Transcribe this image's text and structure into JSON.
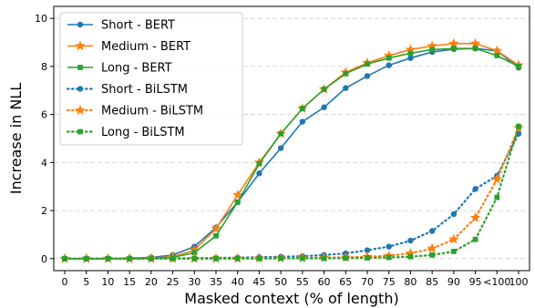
{
  "chart_data": {
    "type": "line",
    "xlabel": "Masked context (% of length)",
    "ylabel": "Increase in NLL",
    "categories": [
      "0",
      "5",
      "10",
      "15",
      "20",
      "25",
      "30",
      "35",
      "40",
      "45",
      "50",
      "55",
      "60",
      "65",
      "70",
      "75",
      "80",
      "85",
      "90",
      "95",
      "<100",
      "100"
    ],
    "ylim": [
      -0.5,
      10.5
    ],
    "yticks": [
      0,
      2,
      4,
      6,
      8,
      10
    ],
    "grid": "horizontal dashed",
    "legend_position": "top-left",
    "series": [
      {
        "name": "Short - BERT",
        "color": "#1f77b4",
        "marker": "circle",
        "linestyle": "solid",
        "values": [
          0.0,
          0.0,
          0.0,
          0.02,
          0.05,
          0.15,
          0.5,
          1.3,
          2.35,
          3.55,
          4.6,
          5.7,
          6.3,
          7.1,
          7.6,
          8.05,
          8.35,
          8.6,
          8.72,
          8.75,
          8.65,
          7.95
        ]
      },
      {
        "name": "Medium - BERT",
        "color": "#ff7f0e",
        "marker": "star",
        "linestyle": "solid",
        "values": [
          0.0,
          0.0,
          0.0,
          0.0,
          0.02,
          0.08,
          0.35,
          1.25,
          2.65,
          4.0,
          5.2,
          6.25,
          7.05,
          7.75,
          8.15,
          8.45,
          8.7,
          8.85,
          8.95,
          8.95,
          8.65,
          8.05
        ]
      },
      {
        "name": "Long - BERT",
        "color": "#2ca02c",
        "marker": "square",
        "linestyle": "solid",
        "values": [
          0.0,
          0.0,
          0.0,
          0.0,
          0.01,
          0.05,
          0.25,
          0.95,
          2.35,
          3.95,
          5.2,
          6.25,
          7.05,
          7.7,
          8.1,
          8.35,
          8.55,
          8.7,
          8.75,
          8.75,
          8.45,
          8.0
        ]
      },
      {
        "name": "Short - BiLSTM",
        "color": "#1f77b4",
        "marker": "circle",
        "linestyle": "dotted",
        "values": [
          0.0,
          0.0,
          0.0,
          0.0,
          0.0,
          0.01,
          0.02,
          0.03,
          0.04,
          0.06,
          0.08,
          0.1,
          0.15,
          0.22,
          0.35,
          0.5,
          0.75,
          1.15,
          1.85,
          2.9,
          3.45,
          5.2
        ]
      },
      {
        "name": "Medium - BiLSTM",
        "color": "#ff7f0e",
        "marker": "star",
        "linestyle": "dotted",
        "values": [
          0.0,
          0.0,
          0.0,
          0.0,
          0.0,
          0.0,
          0.0,
          0.01,
          0.01,
          0.02,
          0.02,
          0.03,
          0.04,
          0.05,
          0.08,
          0.12,
          0.22,
          0.42,
          0.8,
          1.7,
          3.3,
          5.45
        ]
      },
      {
        "name": "Long - BiLSTM",
        "color": "#2ca02c",
        "marker": "square",
        "linestyle": "dotted",
        "values": [
          0.0,
          0.0,
          0.0,
          0.0,
          0.0,
          0.0,
          0.0,
          0.0,
          0.0,
          0.0,
          0.01,
          0.01,
          0.01,
          0.02,
          0.03,
          0.05,
          0.08,
          0.15,
          0.3,
          0.8,
          2.55,
          5.5
        ]
      }
    ]
  }
}
